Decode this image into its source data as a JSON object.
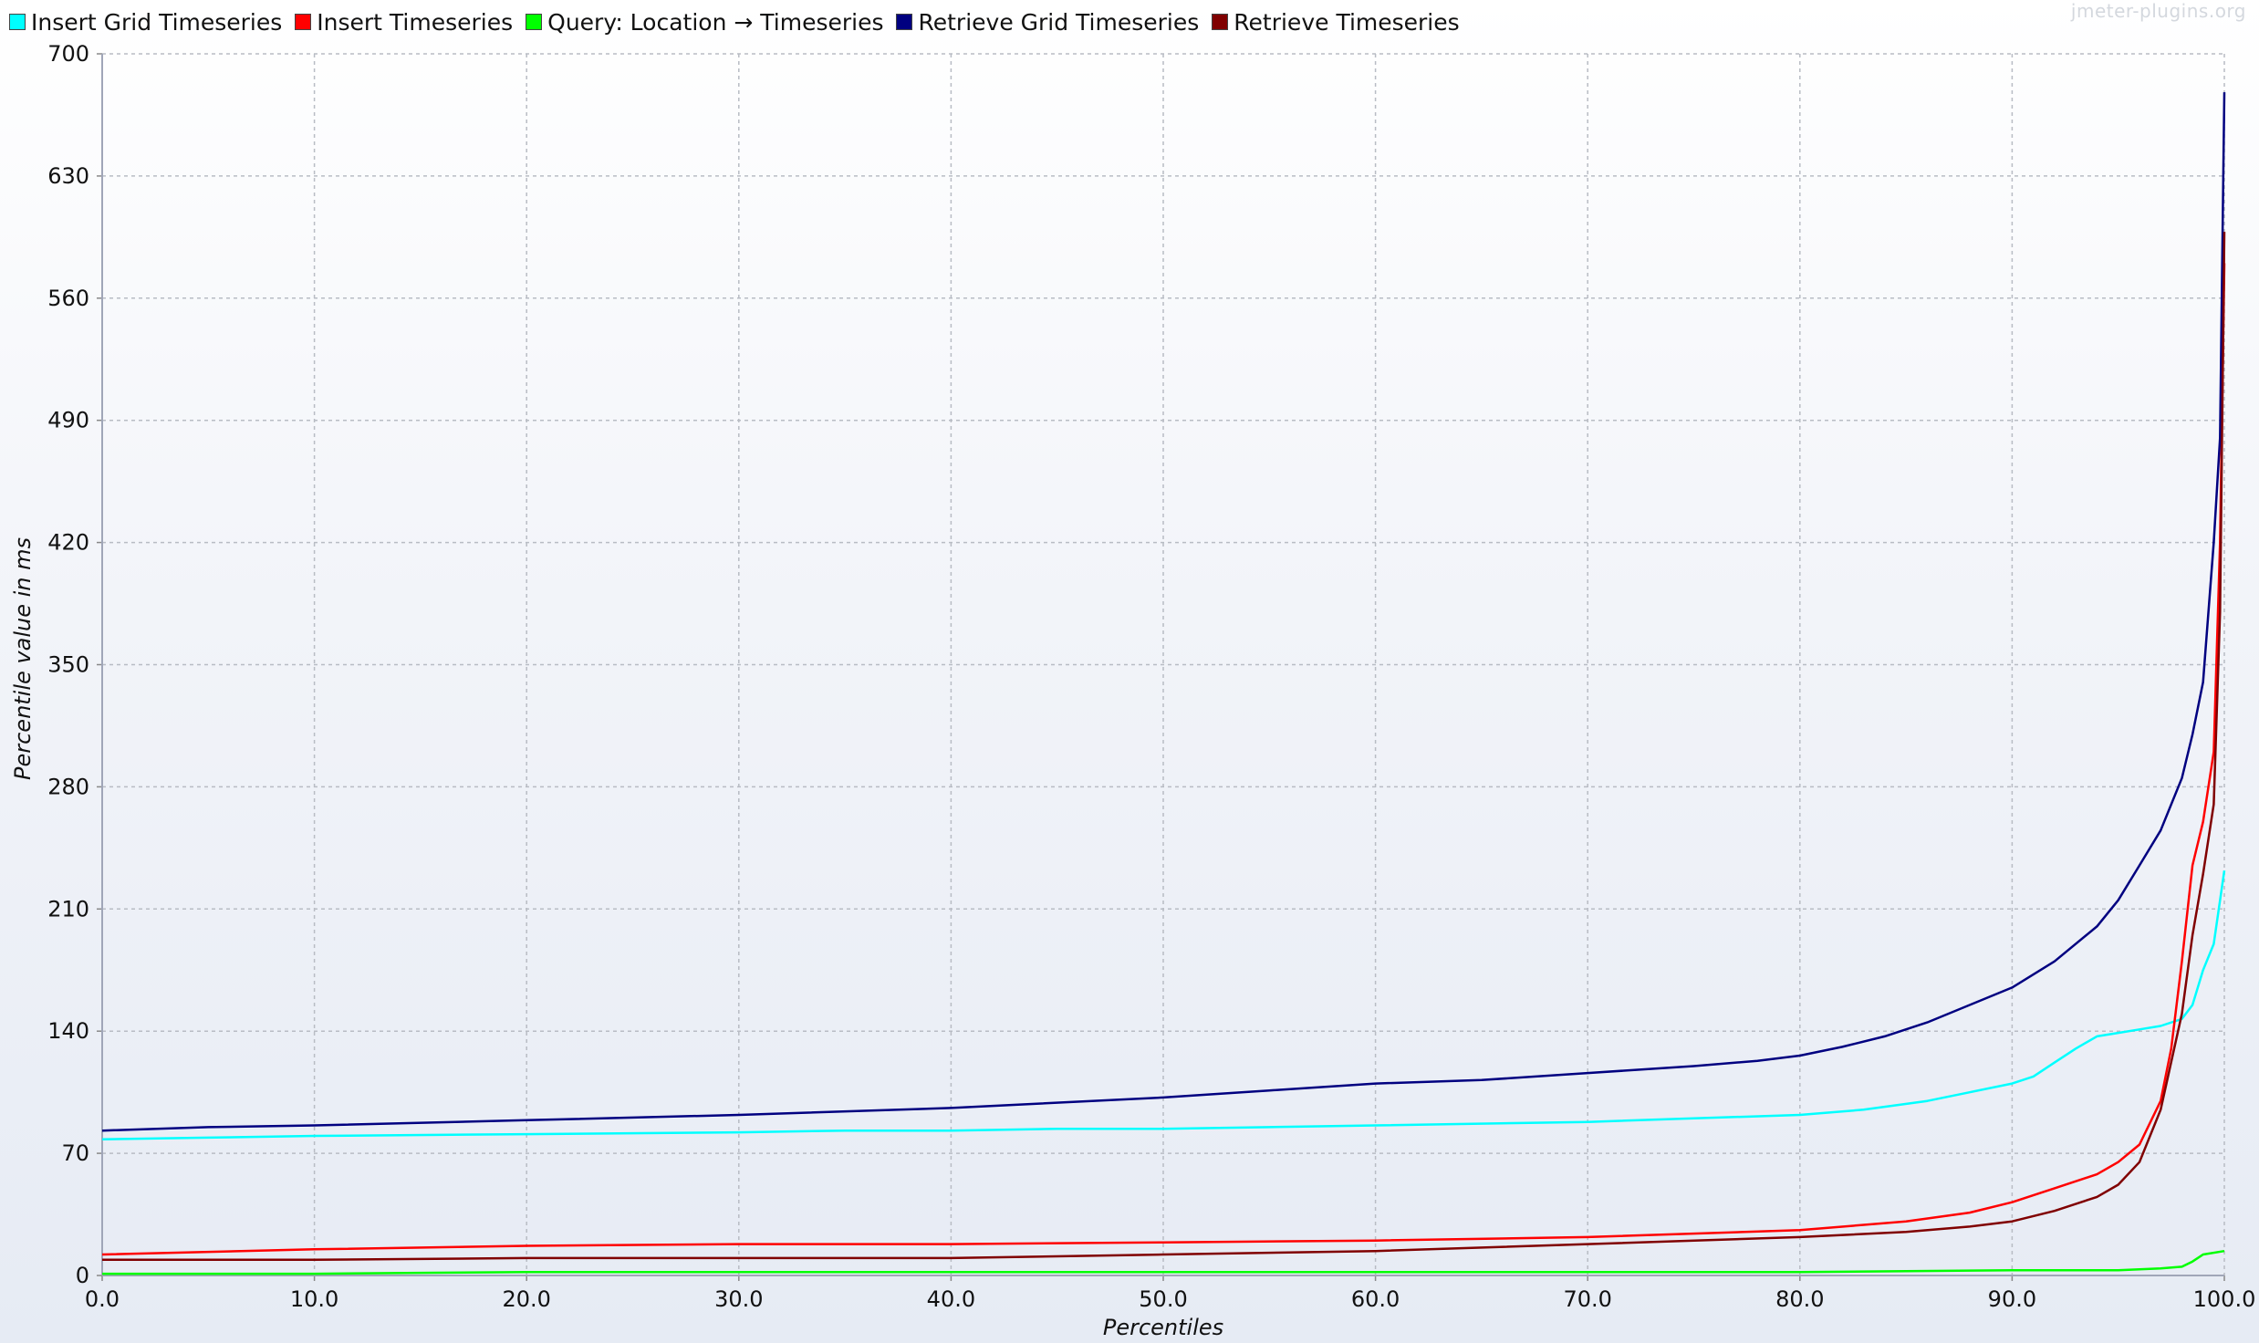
{
  "watermark": "jmeter-plugins.org",
  "chart_data": {
    "type": "line",
    "xlabel": "Percentiles",
    "ylabel": "Percentile value in ms",
    "xlim": [
      0,
      100
    ],
    "ylim": [
      0,
      700
    ],
    "x_ticks": [
      "0.0",
      "10.0",
      "20.0",
      "30.0",
      "40.0",
      "50.0",
      "60.0",
      "70.0",
      "80.0",
      "90.0",
      "100.0"
    ],
    "y_ticks": [
      "0",
      "70",
      "140",
      "210",
      "280",
      "350",
      "420",
      "490",
      "560",
      "630",
      "700"
    ],
    "grid": true,
    "legend_position": "top-left",
    "series": [
      {
        "name": "Insert Grid Timeseries",
        "color": "#00ffff",
        "points": [
          [
            0,
            78
          ],
          [
            5,
            79
          ],
          [
            10,
            80
          ],
          [
            20,
            81
          ],
          [
            30,
            82
          ],
          [
            35,
            83
          ],
          [
            40,
            83
          ],
          [
            45,
            84
          ],
          [
            50,
            84
          ],
          [
            55,
            85
          ],
          [
            60,
            86
          ],
          [
            70,
            88
          ],
          [
            75,
            90
          ],
          [
            80,
            92
          ],
          [
            83,
            95
          ],
          [
            86,
            100
          ],
          [
            88,
            105
          ],
          [
            90,
            110
          ],
          [
            91,
            114
          ],
          [
            92,
            122
          ],
          [
            93,
            130
          ],
          [
            94,
            137
          ],
          [
            95,
            139
          ],
          [
            96,
            141
          ],
          [
            97,
            143
          ],
          [
            98,
            147
          ],
          [
            98.5,
            155
          ],
          [
            99,
            175
          ],
          [
            99.5,
            190
          ],
          [
            100,
            232
          ]
        ]
      },
      {
        "name": "Insert Timeseries",
        "color": "#ff0000",
        "points": [
          [
            0,
            12
          ],
          [
            10,
            15
          ],
          [
            20,
            17
          ],
          [
            30,
            18
          ],
          [
            40,
            18
          ],
          [
            50,
            19
          ],
          [
            60,
            20
          ],
          [
            70,
            22
          ],
          [
            80,
            26
          ],
          [
            85,
            31
          ],
          [
            88,
            36
          ],
          [
            90,
            42
          ],
          [
            92,
            50
          ],
          [
            94,
            58
          ],
          [
            95,
            65
          ],
          [
            96,
            75
          ],
          [
            97,
            100
          ],
          [
            97.5,
            130
          ],
          [
            98,
            180
          ],
          [
            98.5,
            235
          ],
          [
            99,
            260
          ],
          [
            99.5,
            300
          ],
          [
            99.8,
            420
          ],
          [
            100,
            580
          ]
        ]
      },
      {
        "name": "Query: Location → Timeseries",
        "color": "#00ff00",
        "points": [
          [
            0,
            1
          ],
          [
            10,
            1
          ],
          [
            20,
            2
          ],
          [
            40,
            2
          ],
          [
            60,
            2
          ],
          [
            80,
            2
          ],
          [
            90,
            3
          ],
          [
            95,
            3
          ],
          [
            97,
            4
          ],
          [
            98,
            5
          ],
          [
            98.5,
            8
          ],
          [
            99,
            12
          ],
          [
            100,
            14
          ]
        ]
      },
      {
        "name": "Retrieve Grid Timeseries",
        "color": "#000080",
        "points": [
          [
            0,
            83
          ],
          [
            5,
            85
          ],
          [
            10,
            86
          ],
          [
            20,
            89
          ],
          [
            30,
            92
          ],
          [
            40,
            96
          ],
          [
            50,
            102
          ],
          [
            55,
            106
          ],
          [
            60,
            110
          ],
          [
            65,
            112
          ],
          [
            70,
            116
          ],
          [
            75,
            120
          ],
          [
            78,
            123
          ],
          [
            80,
            126
          ],
          [
            82,
            131
          ],
          [
            84,
            137
          ],
          [
            86,
            145
          ],
          [
            88,
            155
          ],
          [
            90,
            165
          ],
          [
            92,
            180
          ],
          [
            94,
            200
          ],
          [
            95,
            215
          ],
          [
            96,
            235
          ],
          [
            97,
            255
          ],
          [
            98,
            285
          ],
          [
            98.5,
            310
          ],
          [
            99,
            340
          ],
          [
            99.5,
            420
          ],
          [
            99.8,
            480
          ],
          [
            100,
            678
          ]
        ]
      },
      {
        "name": "Retrieve Timeseries",
        "color": "#800000",
        "points": [
          [
            0,
            9
          ],
          [
            10,
            9
          ],
          [
            20,
            10
          ],
          [
            30,
            10
          ],
          [
            40,
            10
          ],
          [
            50,
            12
          ],
          [
            60,
            14
          ],
          [
            70,
            18
          ],
          [
            80,
            22
          ],
          [
            85,
            25
          ],
          [
            88,
            28
          ],
          [
            90,
            31
          ],
          [
            92,
            37
          ],
          [
            94,
            45
          ],
          [
            95,
            52
          ],
          [
            96,
            65
          ],
          [
            97,
            95
          ],
          [
            98,
            150
          ],
          [
            98.5,
            195
          ],
          [
            99,
            230
          ],
          [
            99.5,
            270
          ],
          [
            99.8,
            380
          ],
          [
            100,
            598
          ]
        ]
      }
    ]
  }
}
